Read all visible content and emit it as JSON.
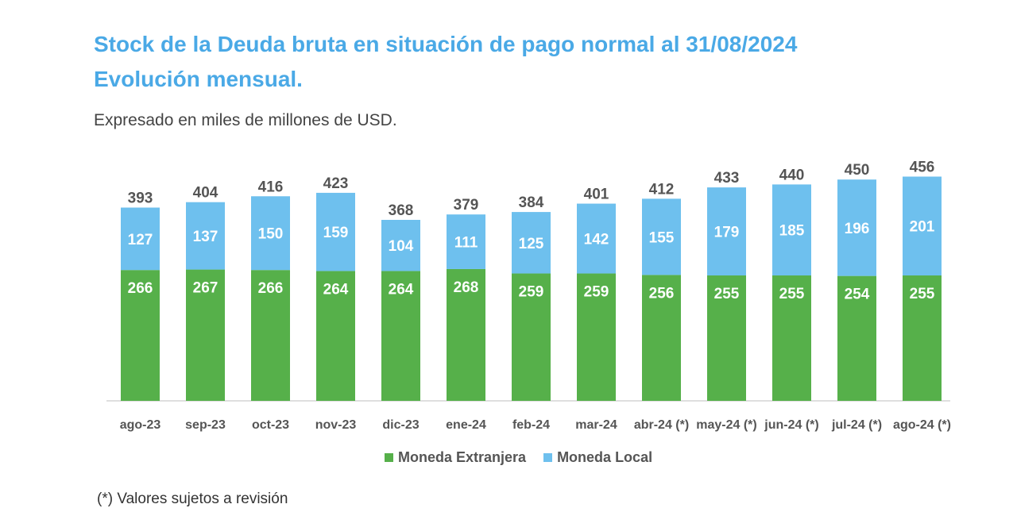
{
  "header": {
    "title_line1": "Stock de la Deuda bruta en situación de pago normal al 31/08/2024",
    "title_line2": "Evolución mensual.",
    "subtitle": "Expresado en miles de millones de USD."
  },
  "footnote": "(*) Valores sujetos a revisión",
  "colors": {
    "moneda_extranjera": "#56b04a",
    "moneda_local": "#6ec0ee",
    "title": "#4aa9e6"
  },
  "chart_data": {
    "type": "bar",
    "stacked": true,
    "categories": [
      "ago-23",
      "sep-23",
      "oct-23",
      "nov-23",
      "dic-23",
      "ene-24",
      "feb-24",
      "mar-24",
      "abr-24 (*)",
      "may-24 (*)",
      "jun-24 (*)",
      "jul-24 (*)",
      "ago-24 (*)"
    ],
    "series": [
      {
        "name": "Moneda Extranjera",
        "color": "#56b04a",
        "values": [
          266,
          267,
          266,
          264,
          264,
          268,
          259,
          259,
          256,
          255,
          255,
          254,
          255
        ]
      },
      {
        "name": "Moneda Local",
        "color": "#6ec0ee",
        "values": [
          127,
          137,
          150,
          159,
          104,
          111,
          125,
          142,
          155,
          179,
          185,
          196,
          201
        ]
      }
    ],
    "totals": [
      393,
      404,
      416,
      423,
      368,
      379,
      384,
      401,
      412,
      433,
      440,
      450,
      456
    ],
    "ylim": [
      0,
      460
    ],
    "legend_position": "bottom",
    "grid": false
  }
}
